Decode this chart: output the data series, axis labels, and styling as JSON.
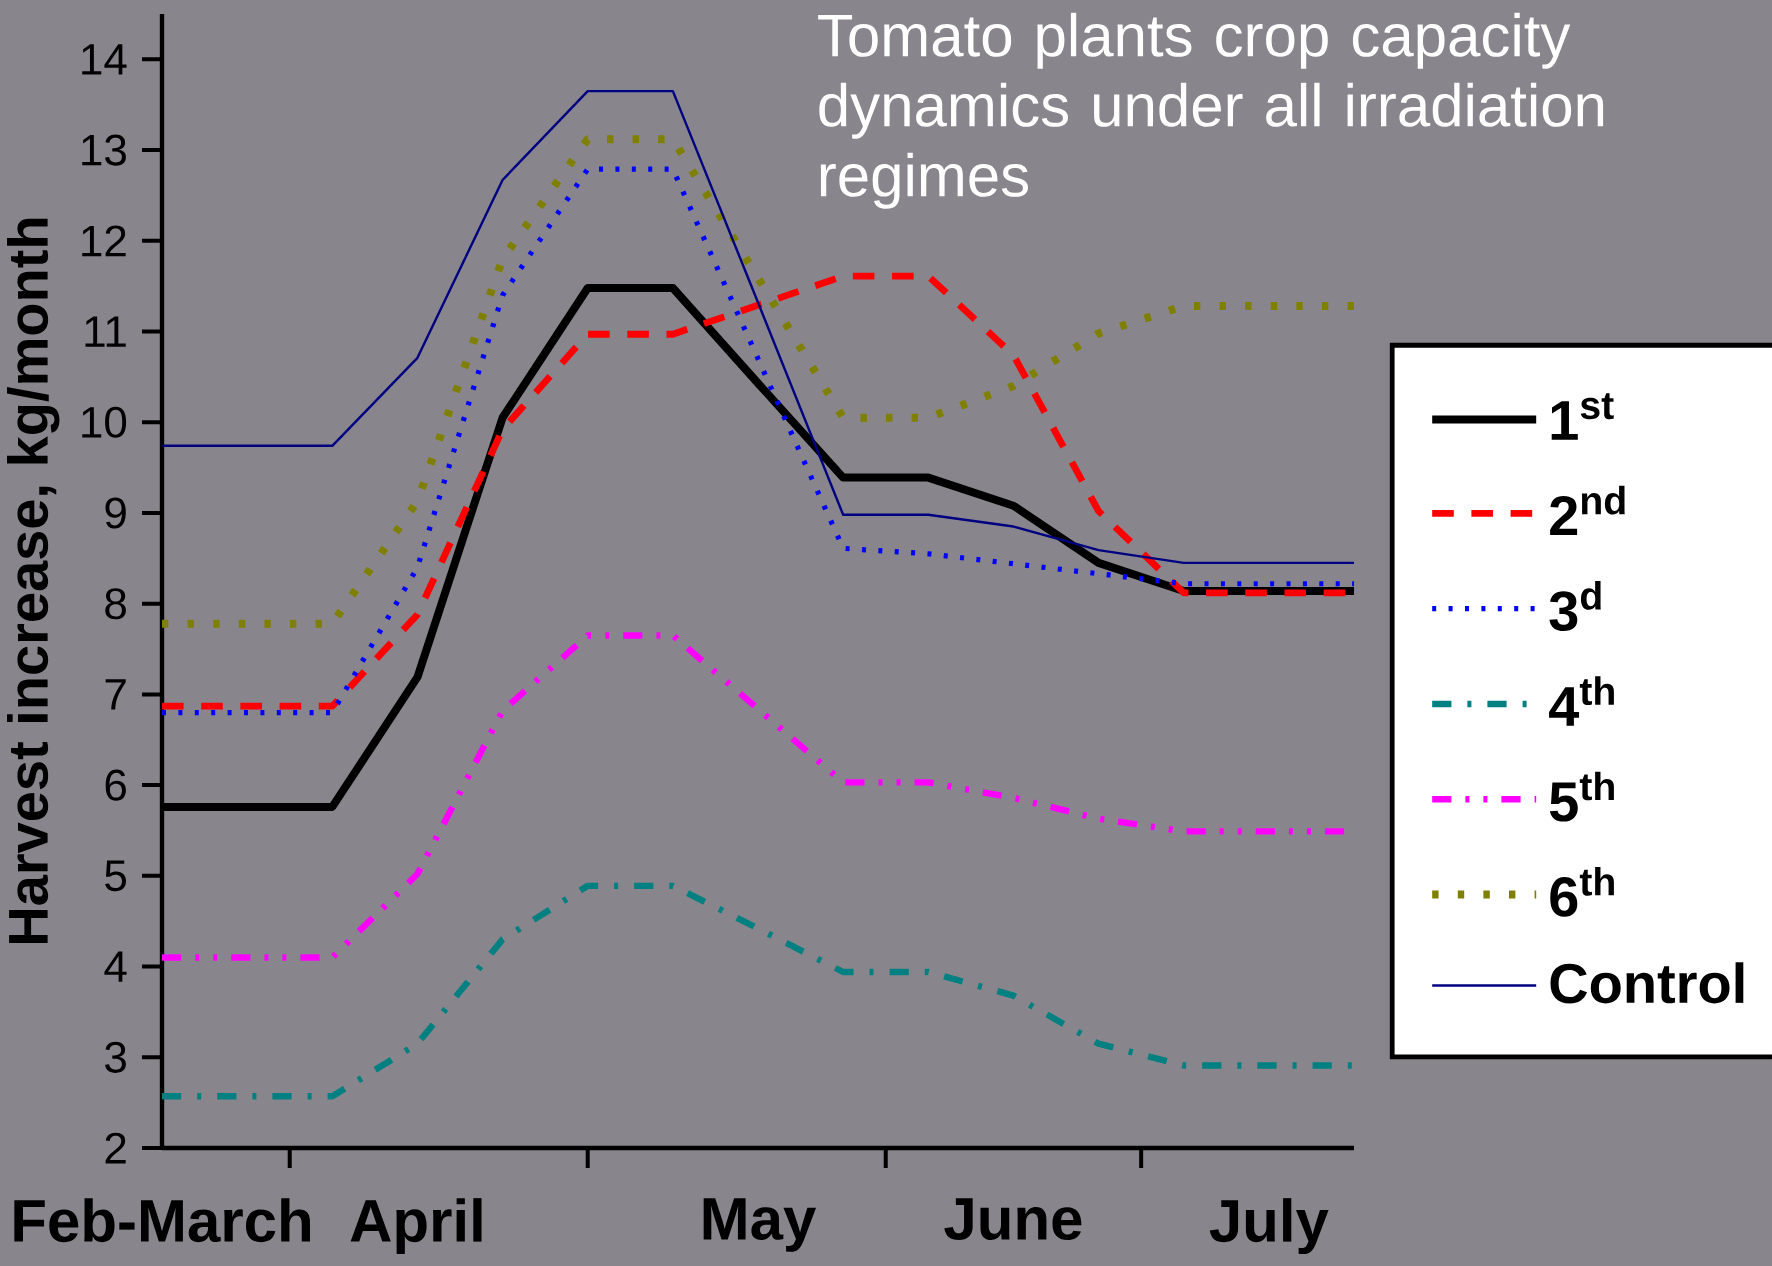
{
  "chart_data": {
    "type": "line",
    "title": "Tomato plants crop capacity dynamics under all irradiation regimes",
    "ylabel": "Harvest increase, kg/month",
    "categories": [
      "Feb-March",
      null,
      null,
      "April",
      null,
      null,
      null,
      "May",
      null,
      null,
      "June",
      null,
      null,
      "July",
      null
    ],
    "ylim": [
      2,
      14.5
    ],
    "yticks": [
      2,
      3,
      4,
      5,
      6,
      7,
      8,
      9,
      10,
      11,
      12,
      13,
      14
    ],
    "series": [
      {
        "name": "1$^{st}$",
        "color": "#000000",
        "line_style": "solid",
        "values": [
          5.76,
          5.76,
          5.76,
          7.19,
          10.05,
          11.48,
          11.48,
          10.43,
          9.39,
          9.39,
          9.08,
          8.45,
          8.14,
          8.14,
          8.14
        ]
      },
      {
        "name": "2$^{nd}$",
        "color": "#ff0000",
        "line_style": "dashed",
        "values": [
          6.87,
          6.87,
          6.87,
          7.88,
          9.92,
          10.97,
          10.97,
          11.29,
          11.61,
          11.61,
          10.74,
          9.02,
          8.12,
          8.12,
          8.12
        ]
      },
      {
        "name": "3$^{d}$",
        "color": "#0000ff",
        "line_style": "dotted",
        "values": [
          6.8,
          6.8,
          6.8,
          8.4,
          11.4,
          12.79,
          12.79,
          10.7,
          8.61,
          8.55,
          8.44,
          8.33,
          8.22,
          8.22,
          8.22
        ]
      },
      {
        "name": "4$^{th}$",
        "color": "#008080",
        "line_style": "dashdot",
        "values": [
          2.57,
          2.57,
          2.57,
          3.15,
          4.3,
          4.89,
          4.89,
          4.42,
          3.94,
          3.94,
          3.68,
          3.15,
          2.91,
          2.91,
          2.91
        ]
      },
      {
        "name": "5$^{th}$",
        "color": "#ff00ff",
        "line_style": "dashdotdot",
        "values": [
          4.1,
          4.1,
          4.1,
          5.02,
          6.82,
          7.65,
          7.65,
          6.84,
          6.03,
          6.03,
          5.86,
          5.63,
          5.49,
          5.49,
          5.49
        ]
      },
      {
        "name": "6$^{th}$",
        "color": "#808000",
        "line_style": "dotted",
        "values": [
          7.78,
          7.78,
          7.78,
          9.13,
          11.8,
          13.12,
          13.12,
          11.59,
          10.05,
          10.05,
          10.4,
          10.98,
          11.28,
          11.28,
          11.28
        ]
      },
      {
        "name": "Control",
        "color": "#000080",
        "line_style": "solid",
        "values": [
          9.74,
          9.74,
          9.74,
          10.71,
          12.67,
          13.65,
          13.65,
          11.32,
          8.98,
          8.98,
          8.85,
          8.59,
          8.45,
          8.45,
          8.45
        ]
      }
    ],
    "legend": "right",
    "marker": "none",
    "grid": false
  }
}
